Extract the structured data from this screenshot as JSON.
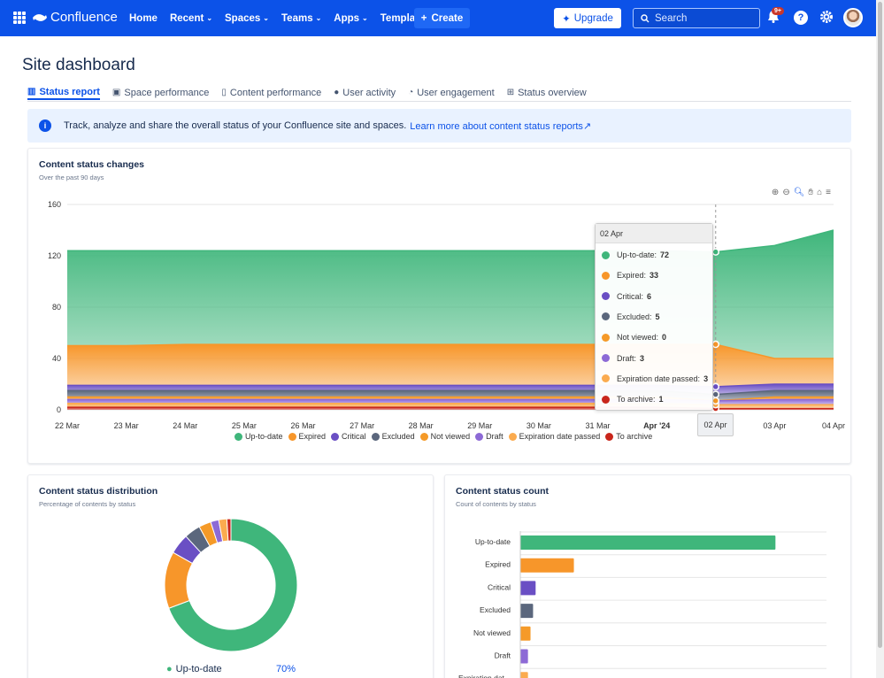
{
  "topbar": {
    "product": "Confluence",
    "nav": [
      {
        "label": "Home",
        "has_menu": false
      },
      {
        "label": "Recent",
        "has_menu": true
      },
      {
        "label": "Spaces",
        "has_menu": true
      },
      {
        "label": "Teams",
        "has_menu": true
      },
      {
        "label": "Apps",
        "has_menu": true
      },
      {
        "label": "Templates",
        "has_menu": false
      }
    ],
    "create_label": "Create",
    "upgrade_label": "Upgrade",
    "search_placeholder": "Search",
    "notifications_badge": "9+",
    "accent": "#0c52e8"
  },
  "page": {
    "title": "Site dashboard"
  },
  "tabs": [
    {
      "label": "Status report",
      "icon": "bar-chart-icon",
      "active": true
    },
    {
      "label": "Space performance",
      "icon": "space-icon",
      "active": false
    },
    {
      "label": "Content performance",
      "icon": "page-icon",
      "active": false
    },
    {
      "label": "User activity",
      "icon": "person-icon",
      "active": false
    },
    {
      "label": "User engagement",
      "icon": "gauge-icon",
      "active": false
    },
    {
      "label": "Status overview",
      "icon": "table-icon",
      "active": false
    }
  ],
  "banner": {
    "text": "Track, analyze and share the overall status of your Confluence site and spaces.",
    "link": "Learn more about content status reports"
  },
  "status_changes": {
    "title": "Content status changes",
    "subtitle": "Over the past 90 days",
    "tooltip_date": "02 Apr",
    "selected_x_label": "02 Apr",
    "toolbar_icons": [
      "zoom-in-icon",
      "zoom-out-icon",
      "zoom-select-icon",
      "pan-icon",
      "reset-home-icon",
      "menu-icon"
    ]
  },
  "distribution": {
    "title": "Content status distribution",
    "subtitle": "Percentage of contents by status",
    "legend_first": {
      "label": "Up-to-date",
      "pct": "70%"
    }
  },
  "count": {
    "title": "Content status count",
    "subtitle": "Count of contents by status"
  },
  "statuses": [
    {
      "name": "Up-to-date",
      "color": "#3fb67b"
    },
    {
      "name": "Expired",
      "color": "#f7962a"
    },
    {
      "name": "Critical",
      "color": "#6a4fc4"
    },
    {
      "name": "Excluded",
      "color": "#5b677d"
    },
    {
      "name": "Not viewed",
      "color": "#f59a28"
    },
    {
      "name": "Draft",
      "color": "#8d6ad6"
    },
    {
      "name": "Expiration date passed",
      "color": "#fbab4f"
    },
    {
      "name": "To archive",
      "color": "#c9261b"
    }
  ],
  "chart_data": [
    {
      "type": "area",
      "stacked": true,
      "title": "Content status changes",
      "x": [
        "22 Mar",
        "23 Mar",
        "24 Mar",
        "25 Mar",
        "26 Mar",
        "27 Mar",
        "28 Mar",
        "29 Mar",
        "30 Mar",
        "31 Mar",
        "Apr '24",
        "02 Apr",
        "03 Apr",
        "04 Apr"
      ],
      "ylim": [
        0,
        160
      ],
      "yticks": [
        0,
        40,
        80,
        120,
        160
      ],
      "series": [
        {
          "name": "To archive",
          "values": [
            2,
            2,
            2,
            2,
            2,
            2,
            2,
            2,
            2,
            2,
            2,
            1,
            1,
            1
          ]
        },
        {
          "name": "Expiration date passed",
          "values": [
            3,
            3,
            3,
            3,
            3,
            3,
            3,
            3,
            3,
            3,
            3,
            3,
            3,
            3
          ]
        },
        {
          "name": "Draft",
          "values": [
            3,
            3,
            3,
            3,
            3,
            3,
            3,
            3,
            3,
            3,
            3,
            3,
            4,
            4
          ]
        },
        {
          "name": "Not viewed",
          "values": [
            2,
            2,
            2,
            2,
            2,
            2,
            2,
            2,
            2,
            2,
            2,
            0,
            2,
            2
          ]
        },
        {
          "name": "Excluded",
          "values": [
            5,
            5,
            5,
            5,
            5,
            5,
            5,
            5,
            5,
            5,
            5,
            5,
            5,
            5
          ]
        },
        {
          "name": "Critical",
          "values": [
            4,
            4,
            4,
            4,
            4,
            4,
            4,
            4,
            4,
            4,
            4,
            6,
            5,
            5
          ]
        },
        {
          "name": "Expired",
          "values": [
            31,
            31,
            32,
            32,
            32,
            32,
            32,
            32,
            32,
            32,
            32,
            33,
            20,
            20
          ]
        },
        {
          "name": "Up-to-date",
          "values": [
            74,
            74,
            73,
            73,
            73,
            73,
            73,
            73,
            73,
            73,
            73,
            72,
            88,
            100
          ]
        }
      ],
      "tooltip": {
        "x": "02 Apr",
        "values": [
          {
            "name": "Up-to-date",
            "value": 72
          },
          {
            "name": "Expired",
            "value": 33
          },
          {
            "name": "Critical",
            "value": 6
          },
          {
            "name": "Excluded",
            "value": 5
          },
          {
            "name": "Not viewed",
            "value": 0
          },
          {
            "name": "Draft",
            "value": 3
          },
          {
            "name": "Expiration date passed",
            "value": 3
          },
          {
            "name": "To archive",
            "value": 1
          }
        ]
      }
    },
    {
      "type": "pie",
      "donut": true,
      "title": "Content status distribution",
      "categories": [
        "Up-to-date",
        "Expired",
        "Critical",
        "Excluded",
        "Not viewed",
        "Draft",
        "Expiration date passed",
        "To archive"
      ],
      "values": [
        70,
        14,
        5,
        4,
        3,
        2,
        2,
        1
      ]
    },
    {
      "type": "bar",
      "orientation": "horizontal",
      "title": "Content status count",
      "categories": [
        "Up-to-date",
        "Expired",
        "Critical",
        "Excluded",
        "Not viewed",
        "Draft",
        "Expiration dat..."
      ],
      "values": [
        100,
        21,
        6,
        5,
        4,
        3,
        3
      ]
    }
  ]
}
